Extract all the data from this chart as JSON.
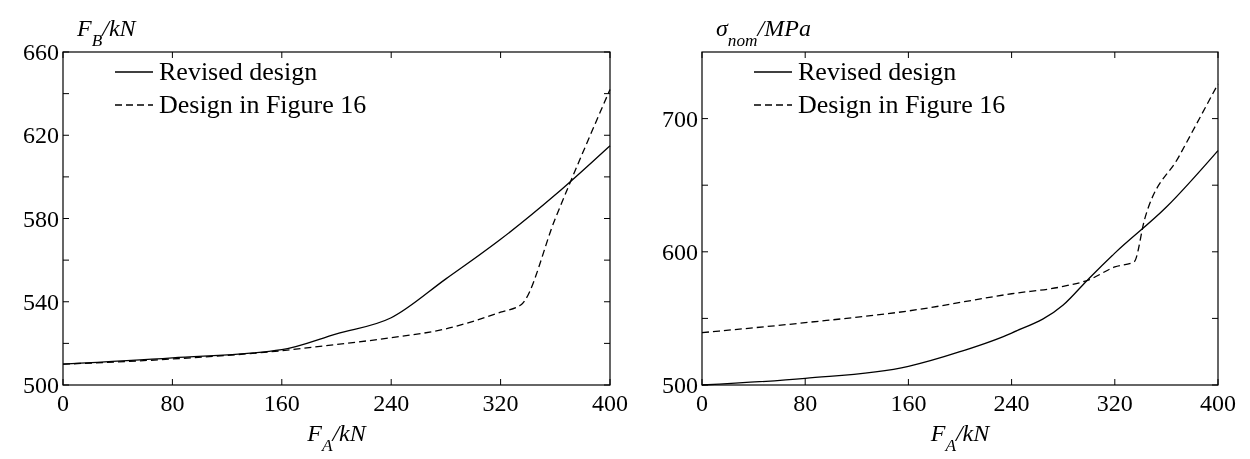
{
  "chart_data": [
    {
      "type": "line",
      "ylabel": "F$_{B}$/kN",
      "xlabel": "F$_{A}$/kN",
      "xlim": [
        0,
        400
      ],
      "ylim": [
        500,
        660
      ],
      "xticks": [
        0,
        80,
        160,
        240,
        320,
        400
      ],
      "yticks": [
        500,
        {
          "value": 520,
          "label": null
        },
        540,
        {
          "value": 560,
          "label": null
        },
        580,
        {
          "value": 600,
          "label": null
        },
        620,
        {
          "value": 640,
          "label": null
        },
        660
      ],
      "legend": "top left",
      "grid": false,
      "series": [
        {
          "name": "Revised design",
          "color": "#000000",
          "line_style": "solid",
          "x": [
            0,
            80,
            160,
            200,
            240,
            280,
            320,
            360,
            400
          ],
          "values": [
            510,
            513,
            517,
            524.6,
            532.3,
            551,
            570,
            591.4,
            615
          ]
        },
        {
          "name": "Design in Figure 16",
          "color": "#000000",
          "line_style": "dashed",
          "x": [
            0,
            80,
            160,
            200,
            240,
            280,
            320,
            335,
            360,
            400
          ],
          "values": [
            510,
            512.5,
            516.5,
            519.5,
            522.7,
            527,
            535,
            538.6,
            580,
            642
          ]
        }
      ]
    },
    {
      "type": "line",
      "ylabel": "σ$_{nom}$/MPa",
      "xlabel": "F$_{A}$/kN",
      "xlim": [
        0,
        400
      ],
      "ylim": [
        500,
        750
      ],
      "xticks": [
        0,
        80,
        160,
        240,
        320,
        400
      ],
      "yticks": [
        500,
        {
          "value": 550,
          "label": null
        },
        600,
        {
          "value": 650,
          "label": null
        },
        700
      ],
      "legend": "top left",
      "grid": false,
      "series": [
        {
          "name": "Revised design",
          "color": "#000000",
          "line_style": "solid",
          "x": [
            0,
            80,
            160,
            200,
            240,
            280,
            300,
            320,
            360,
            400
          ],
          "values": [
            500,
            505,
            514,
            525,
            539,
            560,
            580,
            599,
            633.6,
            676
          ]
        },
        {
          "name": "Design in Figure 16",
          "color": "#000000",
          "line_style": "dashed",
          "x": [
            0,
            80,
            160,
            240,
            280,
            300,
            320,
            335,
            343,
            370,
            400
          ],
          "values": [
            539.3,
            546.8,
            555.6,
            568.5,
            574,
            579,
            588.6,
            592.5,
            624,
            672,
            726
          ]
        }
      ]
    }
  ]
}
